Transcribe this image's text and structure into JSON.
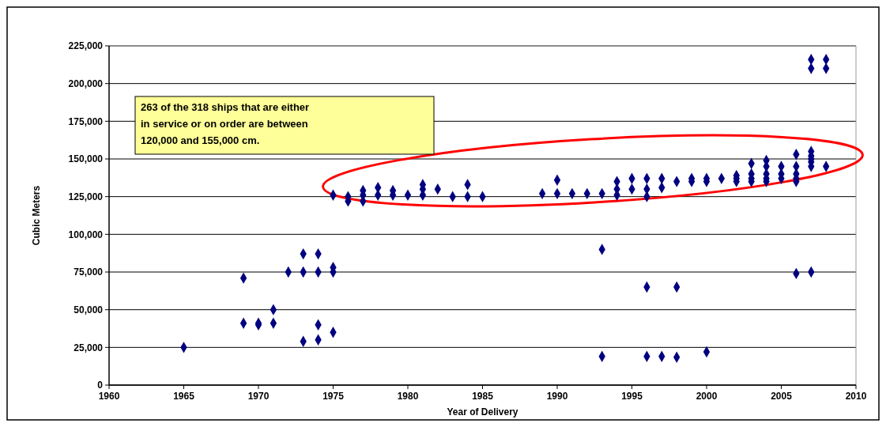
{
  "chart_data": {
    "type": "scatter",
    "xlabel": "Year of Delivery",
    "ylabel": "Cubic Meters",
    "annotations": [
      "263 of the 318 ships that are either in service or on order are between 120,000 and 155,000 cm."
    ],
    "xlim": [
      1960,
      2010
    ],
    "xticks": [
      1960,
      1965,
      1970,
      1975,
      1980,
      1985,
      1990,
      1995,
      2000,
      2005,
      2010
    ],
    "ylim": [
      0,
      225000
    ],
    "yticks": [
      {
        "value": 0,
        "label": "0"
      },
      {
        "value": 25000,
        "label": "25,000"
      },
      {
        "value": 50000,
        "label": "50,000"
      },
      {
        "value": 75000,
        "label": "75,000"
      },
      {
        "value": 100000,
        "label": "100,000"
      },
      {
        "value": 125000,
        "label": "125,000"
      },
      {
        "value": 150000,
        "label": "150,000"
      },
      {
        "value": 175000,
        "label": "175,000"
      },
      {
        "value": 200000,
        "label": "200,000"
      },
      {
        "value": 225000,
        "label": "225,000"
      }
    ],
    "grid": "y",
    "marker": "diamond",
    "series": [
      {
        "color": "#000080",
        "x": [
          1965,
          1969,
          1969,
          1970,
          1970,
          1971,
          1971,
          1972,
          1973,
          1973,
          1973,
          1974,
          1974,
          1974,
          1974,
          1975,
          1975,
          1975,
          1975,
          1976,
          1976,
          1977,
          1977,
          1977,
          1978,
          1978,
          1979,
          1979,
          1980,
          1981,
          1981,
          1981,
          1982,
          1983,
          1984,
          1984,
          1985,
          1989,
          1990,
          1990,
          1991,
          1992,
          1993,
          1993,
          1993,
          1994,
          1994,
          1994,
          1995,
          1995,
          1996,
          1996,
          1996,
          1996,
          1996,
          1997,
          1997,
          1997,
          1998,
          1998,
          1998,
          1999,
          1999,
          2000,
          2000,
          2000,
          2001,
          2002,
          2002,
          2002,
          2003,
          2003,
          2003,
          2003,
          2004,
          2004,
          2004,
          2004,
          2004,
          2005,
          2005,
          2005,
          2006,
          2006,
          2006,
          2006,
          2006,
          2006,
          2007,
          2007,
          2007,
          2007,
          2007,
          2007,
          2007,
          2007,
          2008,
          2008,
          2008
        ],
        "values": [
          25000,
          71000,
          41000,
          41000,
          40000,
          50000,
          41000,
          75000,
          87000,
          75000,
          29000,
          87000,
          75000,
          40000,
          30000,
          78000,
          75000,
          35000,
          126000,
          125000,
          122000,
          129000,
          126000,
          122000,
          131000,
          126000,
          129000,
          126000,
          126000,
          133000,
          130000,
          126000,
          130000,
          125000,
          133000,
          125000,
          125000,
          127000,
          136000,
          127000,
          127000,
          127000,
          127000,
          90000,
          19000,
          135000,
          130000,
          126000,
          137000,
          130000,
          137000,
          130000,
          125000,
          65000,
          19000,
          137000,
          131000,
          19000,
          135000,
          65000,
          18500,
          137000,
          135000,
          137000,
          135000,
          22000,
          137000,
          139000,
          137000,
          135000,
          147000,
          140000,
          137000,
          135000,
          149000,
          145000,
          140000,
          137000,
          135000,
          145000,
          140000,
          137000,
          153000,
          145000,
          140000,
          137000,
          135000,
          74000,
          155000,
          152000,
          150000,
          148000,
          145000,
          216000,
          210000,
          75000,
          216000,
          210000,
          145000
        ]
      }
    ]
  }
}
